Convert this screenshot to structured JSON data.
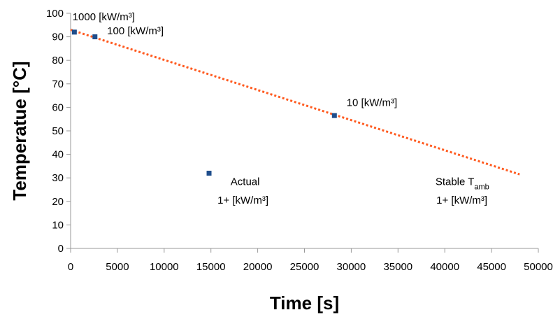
{
  "chart_data": {
    "type": "scatter",
    "title": "",
    "xlabel": "Time [s]",
    "ylabel": "Temperatue [°C]",
    "xlim": [
      0,
      50000
    ],
    "ylim": [
      0,
      100
    ],
    "x_ticks": [
      0,
      5000,
      10000,
      15000,
      20000,
      25000,
      30000,
      35000,
      40000,
      45000,
      50000
    ],
    "y_ticks": [
      0,
      10,
      20,
      30,
      40,
      50,
      60,
      70,
      80,
      90,
      100
    ],
    "grid": {
      "vertical": false,
      "horizontal": false
    },
    "colors": {
      "points": "#1f4e8c",
      "trendline": "#ff5a1f",
      "axis": "#999999",
      "text": "#000000"
    },
    "series": [
      {
        "kind": "points",
        "points": [
          {
            "x": 400,
            "y": 92
          },
          {
            "x": 2600,
            "y": 90
          },
          {
            "x": 28200,
            "y": 56.5
          },
          {
            "x": 14800,
            "y": 32
          }
        ]
      },
      {
        "kind": "trendline",
        "style": "dotted",
        "points": [
          {
            "x": 0,
            "y": 93
          },
          {
            "x": 48000,
            "y": 31.5
          }
        ]
      }
    ],
    "annotations": [
      {
        "text": "1000 [kW/m³]",
        "x": 200,
        "y": 97
      },
      {
        "text": "100 [kW/m³]",
        "x": 3900,
        "y": 91
      },
      {
        "text": "10 [kW/m³]",
        "x": 29500,
        "y": 60.5
      },
      {
        "text": "Actual",
        "x": 17100,
        "y": 27,
        "sub": ""
      },
      {
        "text": "1+ [kW/m³]",
        "x": 15700,
        "y": 19
      },
      {
        "text": "Stable T",
        "sub": "amb",
        "x": 39000,
        "y": 27
      },
      {
        "text": "1+ [kW/m³]",
        "x": 39100,
        "y": 19
      }
    ]
  }
}
